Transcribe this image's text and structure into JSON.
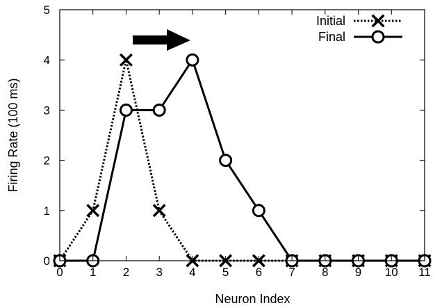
{
  "chart_data": {
    "type": "line",
    "title": "",
    "xlabel": "Neuron Index",
    "ylabel": "Firing Rate (100 ms)",
    "xlim": [
      0,
      11
    ],
    "ylim": [
      0,
      5
    ],
    "x_ticks": [
      "0",
      "1",
      "2",
      "3",
      "4",
      "5",
      "6",
      "7",
      "8",
      "9",
      "10",
      "11"
    ],
    "y_ticks": [
      "0",
      "1",
      "2",
      "3",
      "4",
      "5"
    ],
    "grid": false,
    "legend_position": "top-right",
    "annotation": "right-pointing arrow above the peaks",
    "series": [
      {
        "name": "Initial",
        "style": "dotted",
        "marker": "x",
        "color": "#000000",
        "x": [
          0,
          1,
          2,
          3,
          4,
          5,
          6,
          7,
          8,
          9,
          10,
          11
        ],
        "values": [
          0,
          1,
          4,
          1,
          0,
          0,
          0,
          0,
          0,
          0,
          0,
          0
        ]
      },
      {
        "name": "Final",
        "style": "solid",
        "marker": "circle",
        "color": "#000000",
        "x": [
          0,
          1,
          2,
          3,
          4,
          5,
          6,
          7,
          8,
          9,
          10,
          11
        ],
        "values": [
          0,
          0,
          3,
          3,
          4,
          2,
          1,
          0,
          0,
          0,
          0,
          0
        ]
      }
    ]
  }
}
